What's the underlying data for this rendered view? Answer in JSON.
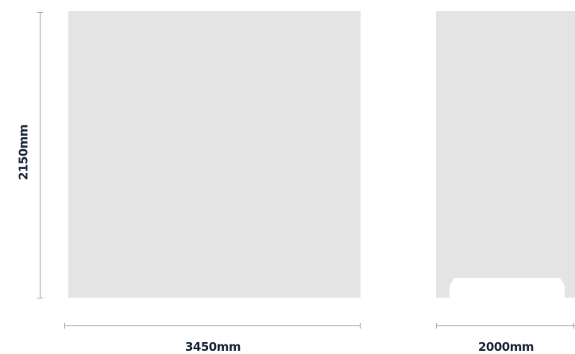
{
  "dimensions": {
    "height_label": "2150mm",
    "front_width_label": "3450mm",
    "side_width_label": "2000mm"
  },
  "colors": {
    "panel_fill": "#e4e4e4",
    "dimension_line": "#a9a9a9",
    "label_text": "#1e2b3c",
    "background": "#ffffff"
  }
}
